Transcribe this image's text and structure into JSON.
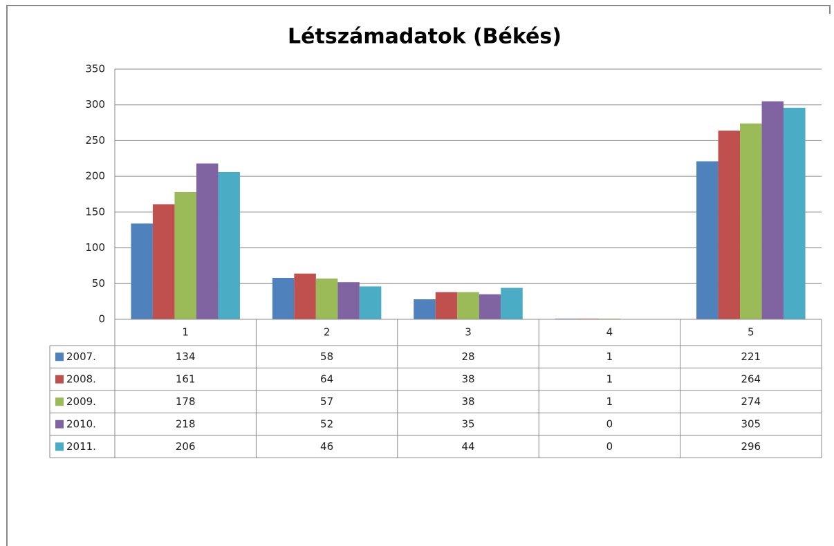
{
  "chart_data": {
    "type": "bar",
    "title": "Létszámadatok (Békés)",
    "categories": [
      "1",
      "2",
      "3",
      "4",
      "5"
    ],
    "series": [
      {
        "name": "2007.",
        "color": "#4f81bd",
        "values": [
          134,
          58,
          28,
          1,
          221
        ]
      },
      {
        "name": "2008.",
        "color": "#c0504d",
        "values": [
          161,
          64,
          38,
          1,
          264
        ]
      },
      {
        "name": "2009.",
        "color": "#9bbb59",
        "values": [
          178,
          57,
          38,
          1,
          274
        ]
      },
      {
        "name": "2010.",
        "color": "#8064a2",
        "values": [
          218,
          52,
          35,
          0,
          305
        ]
      },
      {
        "name": "2011.",
        "color": "#4bacc6",
        "values": [
          206,
          46,
          44,
          0,
          296
        ]
      }
    ],
    "ylim": [
      0,
      350
    ],
    "yticks": [
      0,
      50,
      100,
      150,
      200,
      250,
      300,
      350
    ],
    "grid": true,
    "data_table": true
  }
}
